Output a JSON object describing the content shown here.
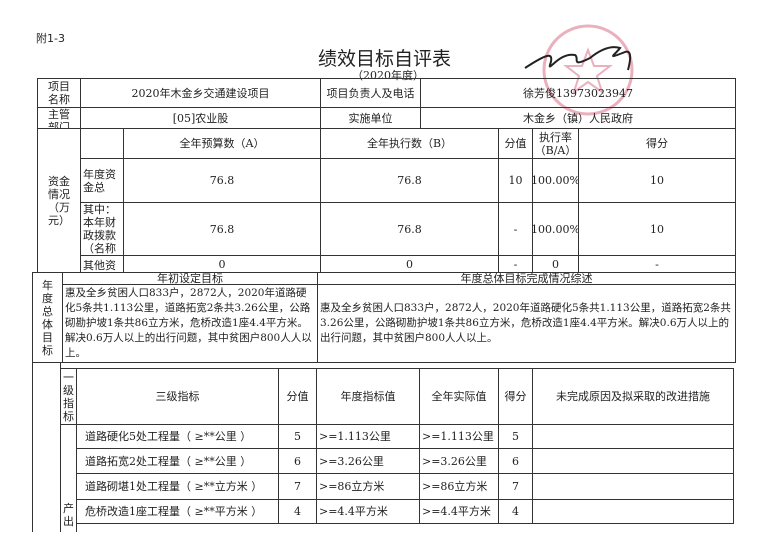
{
  "annex": "附1-3",
  "title": "绩效目标自评表",
  "year": "（2020年度）",
  "stamp": {
    "text": "木金乡人民政府",
    "color": "#e8a0b0"
  },
  "project": {
    "name_label": "项目名称",
    "name": "2020年木金乡交通建设项目",
    "owner_label": "项目负责人及电话",
    "owner": "徐芳俊13973023947",
    "dept_label": "主管部门",
    "dept": "[05]农业股",
    "impl_label": "实施单位",
    "impl": "木金乡（镇）人民政府"
  },
  "funds": {
    "section_label": "资金情况（万元）",
    "headers": [
      "全年预算数（A）",
      "全年执行数（B）",
      "分值",
      "执行率（B/A）",
      "得分"
    ],
    "rows": [
      {
        "label": "年度资金总",
        "a": "76.8",
        "b": "76.8",
        "score_value": "10",
        "rate": "100.00%",
        "score": "10"
      },
      {
        "label": "其中：本年财政拨款（名称和规",
        "a": "76.8",
        "b": "76.8",
        "score_value": "-",
        "rate": "100.00%",
        "score": "10"
      },
      {
        "label": "其他资",
        "a": "0",
        "b": "0",
        "score_value": "-",
        "rate": "0",
        "score": "-"
      }
    ]
  },
  "goals": {
    "section_label": "年度总体目标",
    "initial_header": "年初设定目标",
    "summary_header": "年度总体目标完成情况综述",
    "initial": "惠及全乡贫困人口833户，2872人，2020年道路硬化5条共1.113公里，道路拓宽2条共3.26公里，公路砌勘护坡1条共86立方米，危桥改造1座4.4平方米。解决0.6万人以上的出行问题，其中贫困户800人人以上。",
    "summary": "惠及全乡贫困人口833户，2872人，2020年道路硬化5条共1.113公里，道路拓宽2条共3.26公里，公路砌勘护坡1条共86立方米，危桥改造1座4.4平方米。解决0.6万人以上的出行问题，其中贫困户800人人以上。"
  },
  "indicators": {
    "headers": {
      "level1": "一级指标",
      "level3": "三级指标",
      "score_value": "分值",
      "target": "年度指标值",
      "actual": "全年实际值",
      "score": "得分",
      "reason": "未完成原因及拟采取的改进措施"
    },
    "group_label": "产出",
    "rows": [
      {
        "name": "道路硬化5处工程量（ ≥**公里 ）",
        "score_value": "5",
        "target": ">=1.113公里",
        "actual": ">=1.113公里",
        "score": "5",
        "reason": ""
      },
      {
        "name": "道路拓宽2处工程量（ ≥**公里 ）",
        "score_value": "6",
        "target": ">=3.26公里",
        "actual": ">=3.26公里",
        "score": "6",
        "reason": ""
      },
      {
        "name": "道路砌堪1处工程量（ ≥**立方米 ）",
        "score_value": "7",
        "target": ">=86立方米",
        "actual": ">=86立方米",
        "score": "7",
        "reason": ""
      },
      {
        "name": "危桥改造1座工程量（ ≥**平方米 ）",
        "score_value": "4",
        "target": ">=4.4平方米",
        "actual": ">=4.4平方米",
        "score": "4",
        "reason": ""
      }
    ]
  }
}
